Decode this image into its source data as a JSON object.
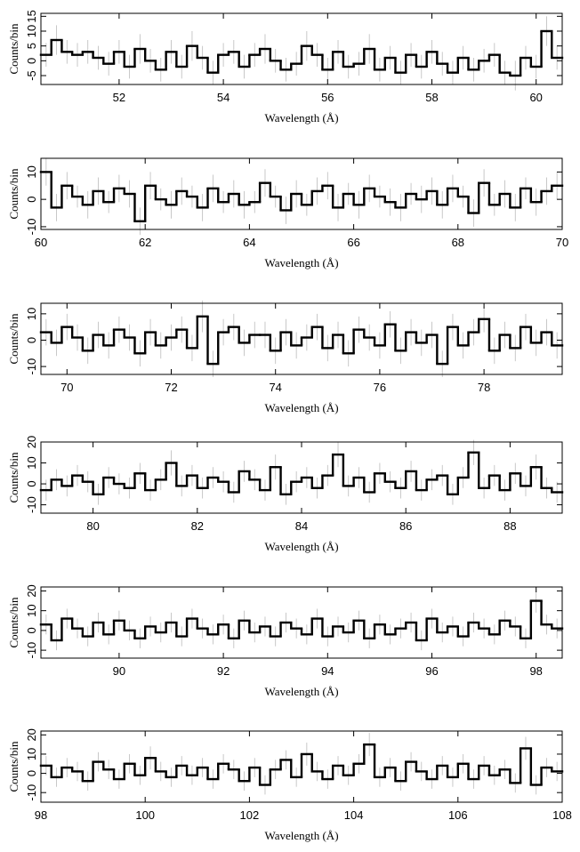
{
  "chart_data": [
    {
      "type": "histogram",
      "xlabel": "Wavelength (Å)",
      "ylabel": "Counts/bin",
      "color": "#000000",
      "error_color": "#bbbbbb",
      "bins": [
        50.5,
        50.7,
        50.9,
        51.1,
        51.3,
        51.5,
        51.7,
        51.9,
        52.1,
        52.3,
        52.5,
        52.7,
        52.9,
        53.1,
        53.3,
        53.5,
        53.7,
        53.9,
        54.1,
        54.3,
        54.5,
        54.7,
        54.9,
        55.1,
        55.3,
        55.5,
        55.7,
        55.9,
        56.1,
        56.3,
        56.5,
        56.7,
        56.9,
        57.1,
        57.3,
        57.5,
        57.7,
        57.9,
        58.1,
        58.3,
        58.5,
        58.7,
        58.9,
        59.1,
        59.3,
        59.5,
        59.7,
        59.9,
        60.1,
        60.3,
        60.5
      ],
      "values": [
        2,
        7,
        3,
        2,
        3,
        1,
        -1,
        3,
        -2,
        4,
        0,
        -3,
        3,
        -2,
        5,
        1,
        -4,
        2,
        3,
        -2,
        2,
        4,
        0,
        -3,
        -1,
        5,
        2,
        -3,
        3,
        -2,
        -1,
        4,
        -3,
        1,
        -4,
        2,
        -2,
        3,
        -1,
        -4,
        1,
        -3,
        0,
        2,
        -4,
        -5,
        1,
        -2,
        10,
        1
      ],
      "errors": [
        4,
        5,
        4,
        4,
        4,
        4,
        4,
        4,
        4,
        5,
        4,
        4,
        4,
        4,
        5,
        4,
        4,
        4,
        4,
        4,
        4,
        5,
        4,
        4,
        4,
        5,
        4,
        4,
        4,
        4,
        4,
        5,
        4,
        4,
        4,
        4,
        4,
        4,
        4,
        4,
        4,
        4,
        4,
        4,
        4,
        5,
        4,
        4,
        5,
        4
      ],
      "xlim": [
        50.5,
        60.5
      ],
      "ylim": [
        -8,
        16
      ],
      "xticks": [
        52,
        54,
        56,
        58,
        60
      ],
      "yticks": [
        -5,
        0,
        5,
        10,
        15
      ]
    },
    {
      "type": "histogram",
      "xlabel": "Wavelength (Å)",
      "ylabel": "Counts/bin",
      "color": "#000000",
      "error_color": "#bbbbbb",
      "bins": [
        60,
        60.2,
        60.4,
        60.6,
        60.8,
        61,
        61.2,
        61.4,
        61.6,
        61.8,
        62,
        62.2,
        62.4,
        62.6,
        62.8,
        63,
        63.2,
        63.4,
        63.6,
        63.8,
        64,
        64.2,
        64.4,
        64.6,
        64.8,
        65,
        65.2,
        65.4,
        65.6,
        65.8,
        66,
        66.2,
        66.4,
        66.6,
        66.8,
        67,
        67.2,
        67.4,
        67.6,
        67.8,
        68,
        68.2,
        68.4,
        68.6,
        68.8,
        69,
        69.2,
        69.4,
        69.6,
        69.8,
        70
      ],
      "values": [
        10,
        -3,
        5,
        1,
        -2,
        3,
        -1,
        4,
        2,
        -8,
        5,
        0,
        -2,
        3,
        1,
        -3,
        4,
        -1,
        2,
        -2,
        -1,
        6,
        1,
        -4,
        2,
        -2,
        3,
        5,
        -3,
        2,
        -2,
        4,
        1,
        -1,
        -3,
        2,
        0,
        3,
        -2,
        4,
        1,
        -5,
        6,
        -2,
        2,
        -3,
        4,
        -1,
        3,
        5
      ],
      "errors": [
        5,
        5,
        5,
        4,
        5,
        5,
        4,
        5,
        5,
        5,
        5,
        4,
        5,
        5,
        4,
        5,
        5,
        4,
        5,
        5,
        4,
        5,
        4,
        5,
        5,
        4,
        5,
        5,
        5,
        4,
        5,
        5,
        4,
        5,
        5,
        4,
        5,
        5,
        5,
        5,
        4,
        5,
        5,
        4,
        5,
        5,
        4,
        5,
        5,
        5
      ],
      "xlim": [
        60,
        70
      ],
      "ylim": [
        -11,
        15
      ],
      "xticks": [
        60,
        62,
        64,
        66,
        68,
        70
      ],
      "yticks": [
        -10,
        0,
        10
      ]
    },
    {
      "type": "histogram",
      "xlabel": "Wavelength (Å)",
      "ylabel": "Counts/bin",
      "color": "#000000",
      "error_color": "#bbbbbb",
      "bins": [
        69.5,
        69.7,
        69.9,
        70.1,
        70.3,
        70.5,
        70.7,
        70.9,
        71.1,
        71.3,
        71.5,
        71.7,
        71.9,
        72.1,
        72.3,
        72.5,
        72.7,
        72.9,
        73.1,
        73.3,
        73.5,
        73.7,
        73.9,
        74.1,
        74.3,
        74.5,
        74.7,
        74.9,
        75.1,
        75.3,
        75.5,
        75.7,
        75.9,
        76.1,
        76.3,
        76.5,
        76.7,
        76.9,
        77.1,
        77.3,
        77.5,
        77.7,
        77.9,
        78.1,
        78.3,
        78.5,
        78.7,
        78.9,
        79.1,
        79.3,
        79.5
      ],
      "values": [
        3,
        -1,
        5,
        1,
        -4,
        2,
        -2,
        4,
        1,
        -5,
        3,
        -2,
        1,
        4,
        -3,
        9,
        -9,
        3,
        5,
        -1,
        2,
        2,
        -4,
        3,
        -2,
        1,
        5,
        -3,
        2,
        -5,
        4,
        1,
        -2,
        6,
        -4,
        3,
        -1,
        2,
        -9,
        5,
        -2,
        3,
        8,
        -4,
        2,
        -3,
        5,
        -1,
        3,
        -2
      ],
      "errors": [
        5,
        5,
        5,
        5,
        5,
        5,
        5,
        5,
        5,
        5,
        5,
        5,
        5,
        5,
        5,
        6,
        5,
        5,
        5,
        5,
        5,
        5,
        5,
        5,
        5,
        5,
        5,
        5,
        5,
        5,
        5,
        5,
        5,
        5,
        5,
        5,
        5,
        5,
        5,
        5,
        5,
        5,
        5,
        5,
        5,
        5,
        5,
        5,
        5,
        5
      ],
      "xlim": [
        69.5,
        79.5
      ],
      "ylim": [
        -13,
        14
      ],
      "xticks": [
        70,
        72,
        74,
        76,
        78
      ],
      "yticks": [
        -10,
        0,
        10
      ]
    },
    {
      "type": "histogram",
      "xlabel": "Wavelength (Å)",
      "ylabel": "Counts/bin",
      "color": "#000000",
      "error_color": "#bbbbbb",
      "bins": [
        79,
        79.2,
        79.4,
        79.6,
        79.8,
        80,
        80.2,
        80.4,
        80.6,
        80.8,
        81,
        81.2,
        81.4,
        81.6,
        81.8,
        82,
        82.2,
        82.4,
        82.6,
        82.8,
        83,
        83.2,
        83.4,
        83.6,
        83.8,
        84,
        84.2,
        84.4,
        84.6,
        84.8,
        85,
        85.2,
        85.4,
        85.6,
        85.8,
        86,
        86.2,
        86.4,
        86.6,
        86.8,
        87,
        87.2,
        87.4,
        87.6,
        87.8,
        88,
        88.2,
        88.4,
        88.6,
        88.8,
        89
      ],
      "values": [
        -3,
        2,
        -1,
        4,
        1,
        -5,
        3,
        0,
        -2,
        5,
        -3,
        2,
        10,
        -1,
        4,
        -2,
        3,
        1,
        -4,
        6,
        2,
        -3,
        8,
        -5,
        1,
        3,
        -2,
        4,
        14,
        -1,
        3,
        -4,
        5,
        1,
        -2,
        6,
        -3,
        2,
        4,
        -5,
        3,
        15,
        -2,
        4,
        -3,
        5,
        -1,
        8,
        -2,
        -4
      ],
      "errors": [
        5,
        5,
        5,
        5,
        5,
        5,
        5,
        5,
        5,
        5,
        5,
        5,
        6,
        5,
        5,
        5,
        5,
        5,
        5,
        5,
        5,
        5,
        6,
        5,
        5,
        5,
        5,
        5,
        6,
        5,
        5,
        5,
        5,
        5,
        5,
        5,
        5,
        5,
        5,
        5,
        5,
        6,
        5,
        5,
        5,
        5,
        5,
        6,
        5,
        5
      ],
      "xlim": [
        79,
        89
      ],
      "ylim": [
        -14,
        20
      ],
      "xticks": [
        80,
        82,
        84,
        86,
        88
      ],
      "yticks": [
        -10,
        0,
        10,
        20
      ]
    },
    {
      "type": "histogram",
      "xlabel": "Wavelength (Å)",
      "ylabel": "Counts/bin",
      "color": "#000000",
      "error_color": "#bbbbbb",
      "bins": [
        88.5,
        88.7,
        88.9,
        89.1,
        89.3,
        89.5,
        89.7,
        89.9,
        90.1,
        90.3,
        90.5,
        90.7,
        90.9,
        91.1,
        91.3,
        91.5,
        91.7,
        91.9,
        92.1,
        92.3,
        92.5,
        92.7,
        92.9,
        93.1,
        93.3,
        93.5,
        93.7,
        93.9,
        94.1,
        94.3,
        94.5,
        94.7,
        94.9,
        95.1,
        95.3,
        95.5,
        95.7,
        95.9,
        96.1,
        96.3,
        96.5,
        96.7,
        96.9,
        97.1,
        97.3,
        97.5,
        97.7,
        97.9,
        98.1,
        98.3,
        98.5
      ],
      "values": [
        3,
        -5,
        6,
        1,
        -3,
        4,
        -2,
        5,
        0,
        -4,
        2,
        -1,
        4,
        -3,
        6,
        1,
        -2,
        3,
        -4,
        5,
        -1,
        2,
        -3,
        4,
        1,
        -2,
        6,
        -3,
        2,
        -1,
        5,
        -4,
        3,
        -2,
        1,
        4,
        -5,
        6,
        -1,
        2,
        -3,
        4,
        1,
        -2,
        5,
        2,
        -4,
        15,
        3,
        1
      ],
      "errors": [
        5,
        5,
        5,
        5,
        5,
        5,
        5,
        5,
        5,
        5,
        5,
        5,
        5,
        5,
        5,
        5,
        5,
        5,
        5,
        5,
        5,
        5,
        5,
        5,
        5,
        5,
        5,
        5,
        5,
        5,
        5,
        5,
        5,
        5,
        5,
        5,
        5,
        5,
        5,
        5,
        5,
        5,
        5,
        5,
        5,
        5,
        5,
        6,
        5,
        5
      ],
      "xlim": [
        88.5,
        98.5
      ],
      "ylim": [
        -14,
        22
      ],
      "xticks": [
        90,
        92,
        94,
        96,
        98
      ],
      "yticks": [
        -10,
        0,
        10,
        20
      ]
    },
    {
      "type": "histogram",
      "xlabel": "Wavelength (Å)",
      "ylabel": "Counts/bin",
      "color": "#000000",
      "error_color": "#bbbbbb",
      "bins": [
        98,
        98.2,
        98.4,
        98.6,
        98.8,
        99,
        99.2,
        99.4,
        99.6,
        99.8,
        100,
        100.2,
        100.4,
        100.6,
        100.8,
        101,
        101.2,
        101.4,
        101.6,
        101.8,
        102,
        102.2,
        102.4,
        102.6,
        102.8,
        103,
        103.2,
        103.4,
        103.6,
        103.8,
        104,
        104.2,
        104.4,
        104.6,
        104.8,
        105,
        105.2,
        105.4,
        105.6,
        105.8,
        106,
        106.2,
        106.4,
        106.6,
        106.8,
        107,
        107.2,
        107.4,
        107.6,
        107.8,
        108
      ],
      "values": [
        4,
        -2,
        3,
        1,
        -4,
        6,
        2,
        -3,
        5,
        -1,
        8,
        1,
        -2,
        4,
        -1,
        3,
        -3,
        5,
        2,
        -4,
        3,
        -6,
        2,
        7,
        -2,
        10,
        1,
        -3,
        4,
        -1,
        5,
        15,
        -2,
        3,
        -4,
        6,
        1,
        -3,
        4,
        -2,
        5,
        -3,
        4,
        -1,
        2,
        -5,
        13,
        -6,
        3,
        1
      ],
      "errors": [
        5,
        5,
        5,
        5,
        5,
        5,
        5,
        5,
        5,
        5,
        6,
        5,
        5,
        5,
        5,
        5,
        5,
        5,
        5,
        5,
        5,
        5,
        5,
        5,
        5,
        6,
        5,
        5,
        5,
        5,
        5,
        6,
        5,
        5,
        5,
        5,
        5,
        5,
        5,
        5,
        5,
        5,
        5,
        5,
        5,
        5,
        6,
        5,
        5,
        5
      ],
      "xlim": [
        98,
        108
      ],
      "ylim": [
        -15,
        22
      ],
      "xticks": [
        98,
        100,
        102,
        104,
        106,
        108
      ],
      "yticks": [
        -10,
        0,
        10,
        20
      ]
    }
  ]
}
